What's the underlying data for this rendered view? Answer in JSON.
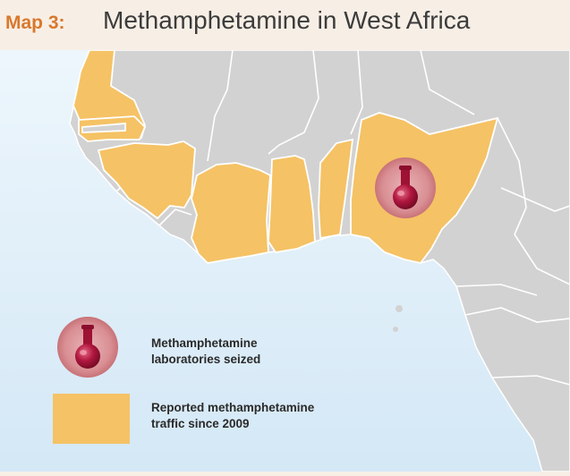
{
  "header": {
    "map_number": "Map 3:",
    "title": "Methamphetamine in West Africa"
  },
  "legend": {
    "lab_line1": "Methamphetamine",
    "lab_line2": "laboratories seized",
    "traffic_line1": "Reported methamphetamine",
    "traffic_line2": "traffic since 2009"
  },
  "colors": {
    "traffic": "#f5c265",
    "land": "#d2d2d2",
    "sea": "#e4f1fa",
    "lab_marker": "#a01236",
    "title_accent": "#d9782d"
  },
  "icons": [
    "lab-flask-icon"
  ]
}
